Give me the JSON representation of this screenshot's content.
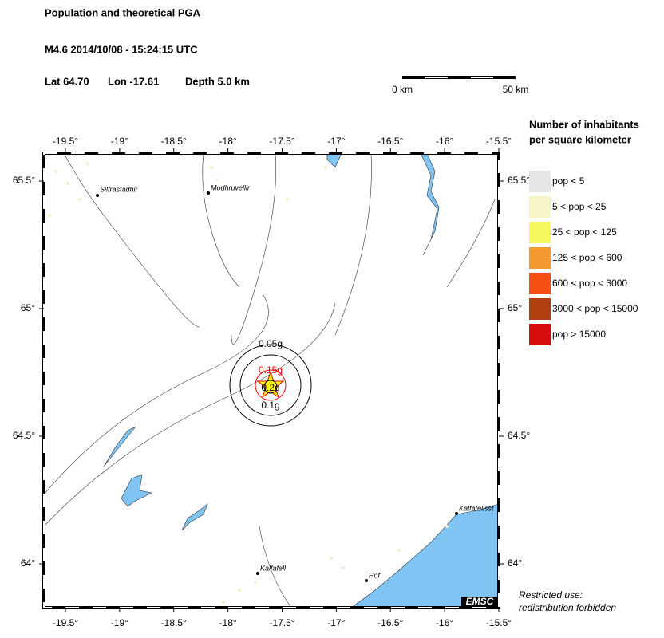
{
  "header": {
    "title": "Population and theoretical PGA",
    "event": "M4.6  2014/10/08 - 15:24:15 UTC",
    "location": [
      "Lat 64.70",
      "Lon -17.61",
      "Depth  5.0 km"
    ]
  },
  "scale_bar": {
    "labels": [
      "0 km",
      "50 km"
    ]
  },
  "map": {
    "lon_ticks": [
      {
        "value": -19.5,
        "label": "-19.5°"
      },
      {
        "value": -19,
        "label": "-19°"
      },
      {
        "value": -18.5,
        "label": "-18.5°"
      },
      {
        "value": -18,
        "label": "-18°"
      },
      {
        "value": -17.5,
        "label": "-17.5°"
      },
      {
        "value": -17,
        "label": "-17°"
      },
      {
        "value": -16.5,
        "label": "-16.5°"
      },
      {
        "value": -16,
        "label": "-16°"
      },
      {
        "value": -15.5,
        "label": "-15.5°"
      }
    ],
    "lat_ticks": [
      {
        "value": 65.5,
        "label": "65.5°"
      },
      {
        "value": 65,
        "label": "65°"
      },
      {
        "value": 64.5,
        "label": "64.5°"
      },
      {
        "value": 64,
        "label": "64°"
      }
    ],
    "places": [
      "Silfrastadhir",
      "Modhruvellir",
      "Kalfafell",
      "Hof",
      "Kalfafellsst"
    ],
    "pga_labels": [
      "0.05g",
      "0.15g",
      "0.2g",
      "0.1g"
    ],
    "credit": "EMSC"
  },
  "legend": {
    "title": [
      "Number of inhabitants",
      "per square kilometer"
    ],
    "items": [
      {
        "label": "pop < 5",
        "color": "#e6e6e6"
      },
      {
        "label": "5 < pop < 25",
        "color": "#f7f5c8"
      },
      {
        "label": "25 < pop < 125",
        "color": "#f7f760"
      },
      {
        "label": "125 < pop < 600",
        "color": "#f59a30"
      },
      {
        "label": "600 < pop < 3000",
        "color": "#f55014"
      },
      {
        "label": "3000 < pop < 15000",
        "color": "#b04010"
      },
      {
        "label": "pop > 15000",
        "color": "#d40c0c"
      }
    ]
  },
  "note": [
    "Restricted use:",
    "redistribution forbidden"
  ]
}
